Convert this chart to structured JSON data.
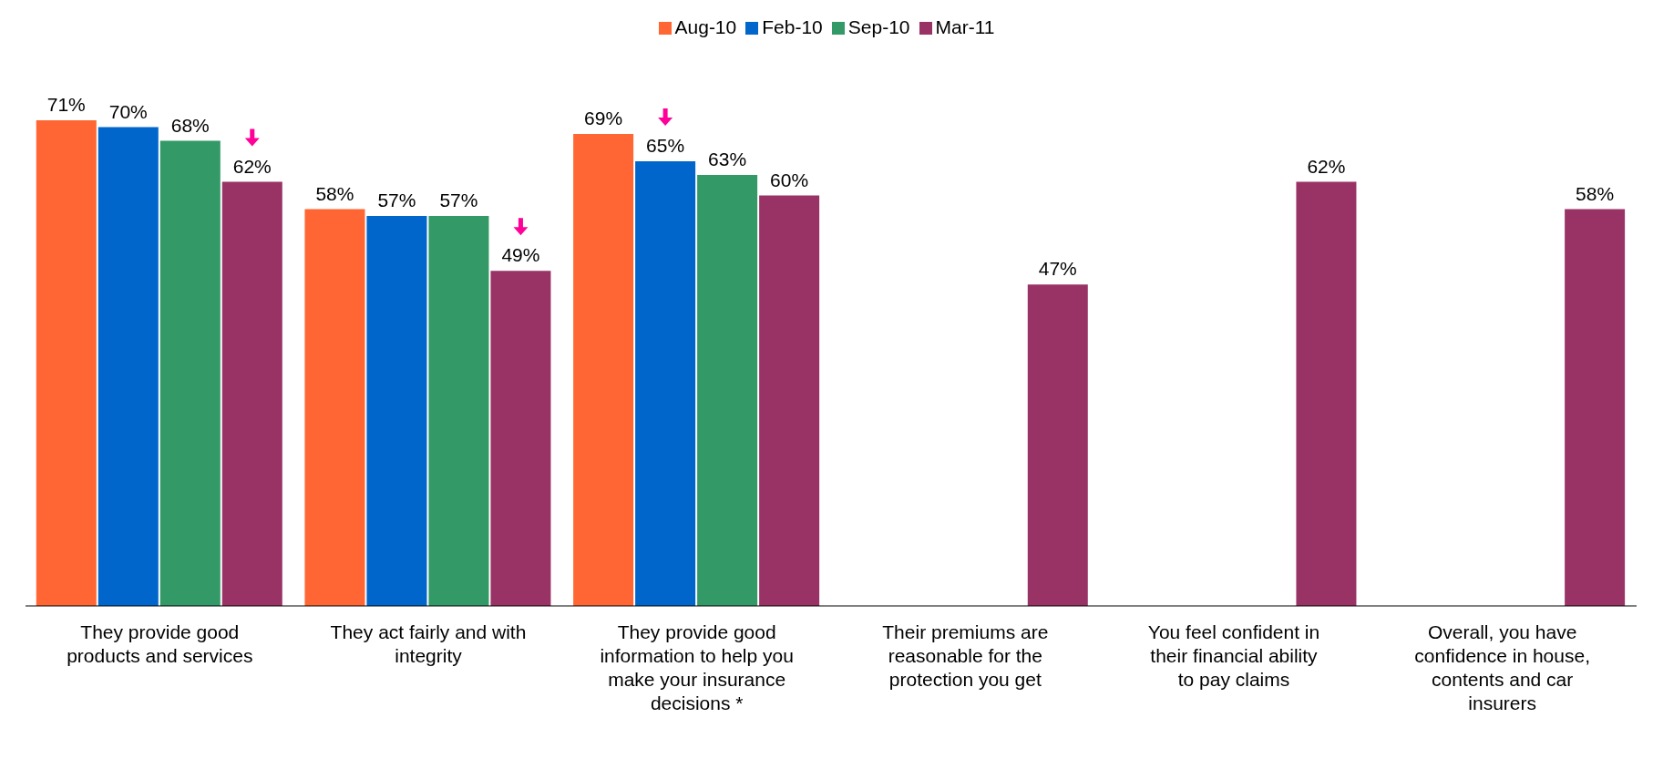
{
  "chart_data": {
    "type": "bar",
    "categories": [
      "They provide good products and services",
      "They act fairly and with integrity",
      "They provide good information to help you make your insurance decisions *",
      "Their premiums are reasonable for the protection you get",
      "You feel confident in their financial ability to pay claims",
      "Overall, you have confidence in house, contents and car insurers"
    ],
    "series": [
      {
        "name": "Aug-10",
        "color": "#ff6633",
        "values": [
          71,
          58,
          69,
          null,
          null,
          null
        ],
        "value_labels": [
          "71%",
          "58%",
          "69%",
          null,
          null,
          null
        ]
      },
      {
        "name": "Feb-10",
        "color": "#0066cc",
        "values": [
          70,
          57,
          65,
          null,
          null,
          null
        ],
        "value_labels": [
          "70%",
          "57%",
          "65%",
          null,
          null,
          null
        ]
      },
      {
        "name": "Sep-10",
        "color": "#339966",
        "values": [
          68,
          57,
          63,
          null,
          null,
          null
        ],
        "value_labels": [
          "68%",
          "57%",
          "63%",
          null,
          null,
          null
        ]
      },
      {
        "name": "Mar-11",
        "color": "#993366",
        "values": [
          62,
          49,
          60,
          47,
          62,
          58
        ],
        "value_labels": [
          "62%",
          "49%",
          "60%",
          "47%",
          "62%",
          "58%"
        ]
      }
    ],
    "legend": "top",
    "grid": false
  }
}
